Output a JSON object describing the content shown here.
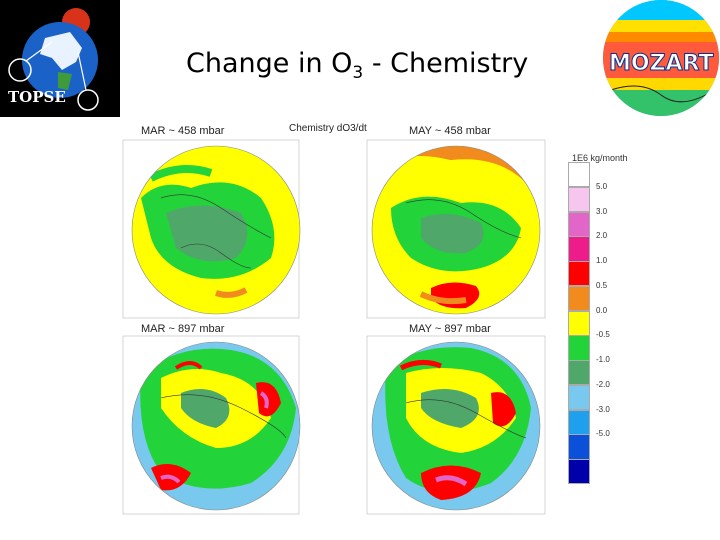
{
  "title": {
    "prefix": "Change in O",
    "sub": "3",
    "suffix": " - Chemistry"
  },
  "logos": {
    "left_text": "TOPSE",
    "right_text": "MOZART"
  },
  "figure": {
    "main_title": "Chemistry dO3/dt",
    "panels": [
      {
        "label": "MAR ~ 458 mbar"
      },
      {
        "label": "MAY ~ 458 mbar"
      },
      {
        "label": "MAR ~ 897 mbar"
      },
      {
        "label": "MAY ~ 897 mbar"
      }
    ],
    "legend": {
      "units": "1E6 kg/month",
      "labels": [
        "5.0",
        "3.0",
        "2.0",
        "1.0",
        "0.5",
        "0.0",
        "-0.5",
        "-1.0",
        "-2.0",
        "-3.0",
        "-5.0"
      ],
      "colors": [
        "#ffffff",
        "#f7c6ef",
        "#e266c8",
        "#ee1b8a",
        "#ff0000",
        "#f28b1e",
        "#ffff00",
        "#22d43a",
        "#4fa86a",
        "#79c9ee",
        "#1ea0ee",
        "#0a50d8",
        "#0000aa"
      ]
    }
  }
}
